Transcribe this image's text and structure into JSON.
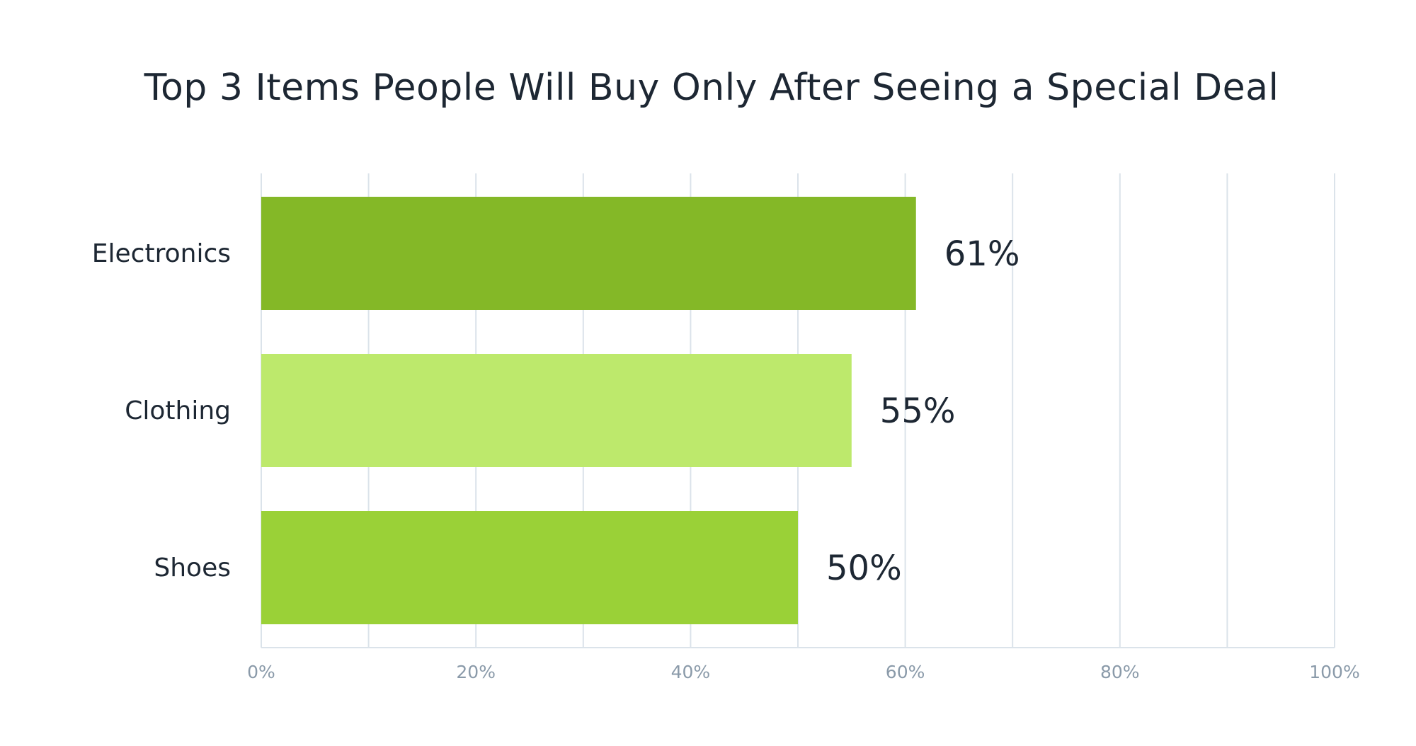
{
  "chart_data": {
    "type": "bar",
    "orientation": "horizontal",
    "title": "Top 3 Items People Will Buy Only After Seeing a Special Deal",
    "categories": [
      "Electronics",
      "Clothing",
      "Shoes"
    ],
    "values": [
      61,
      55,
      50
    ],
    "value_labels": [
      "61%",
      "55%",
      "50%"
    ],
    "bar_colors": [
      "#84b827",
      "#bde96c",
      "#9ad137"
    ],
    "xlim": [
      0,
      100
    ],
    "xticks": [
      0,
      20,
      40,
      60,
      80,
      100
    ],
    "xtick_labels": [
      "0%",
      "20%",
      "40%",
      "60%",
      "80%",
      "100%"
    ],
    "minor_gridlines": [
      10,
      30,
      50,
      70,
      90
    ],
    "grid": true,
    "legend": "none",
    "xlabel": "",
    "ylabel": "",
    "colors": {
      "text": "#1d2733",
      "tick_text": "#8a9aa9",
      "grid": "#dbe3ea"
    }
  }
}
